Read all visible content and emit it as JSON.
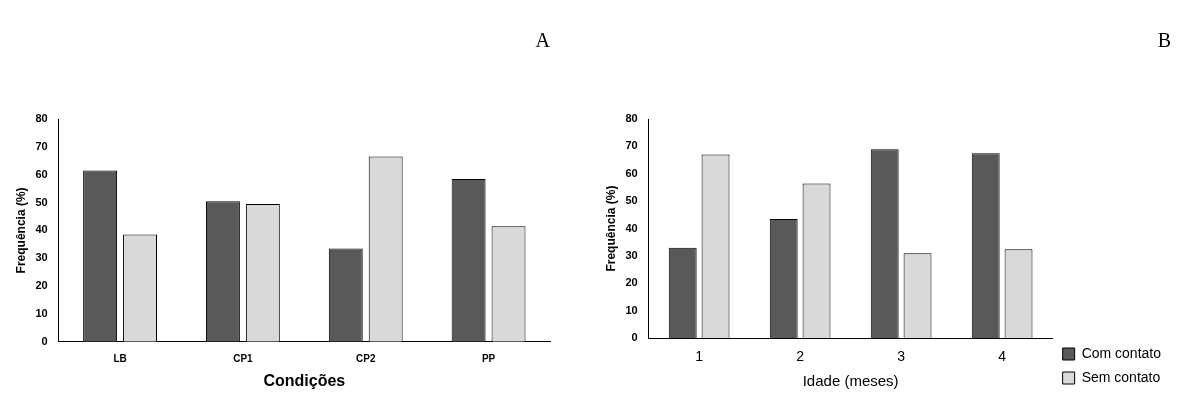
{
  "chart_data": [
    {
      "type": "bar",
      "title": "A",
      "x_label": "Condições",
      "y_label": "Frequência (%)",
      "categories": [
        "LB",
        "CP1",
        "CP2",
        "PP"
      ],
      "series": [
        {
          "color": "#595959",
          "values": [
            61.5,
            50.5,
            33.5,
            58.5
          ]
        },
        {
          "color": "#d9d9d9",
          "values": [
            38.5,
            49.5,
            66.5,
            41.5
          ]
        }
      ],
      "ylim": [
        0,
        80
      ],
      "yticks": [
        0,
        10,
        20,
        30,
        40,
        50,
        60,
        70,
        80
      ],
      "grid": false
    },
    {
      "type": "bar",
      "title": "B",
      "x_label": "Idade (meses)",
      "y_label": "Frequência (%)",
      "categories": [
        "1",
        "2",
        "3",
        "4"
      ],
      "series": [
        {
          "name": "Com contato",
          "color": "#595959",
          "values": [
            33,
            43.5,
            69,
            67.5
          ]
        },
        {
          "name": "Sem contato",
          "color": "#d9d9d9",
          "values": [
            67,
            56.5,
            31,
            32.5
          ]
        }
      ],
      "ylim": [
        0,
        80
      ],
      "yticks": [
        0,
        10,
        20,
        30,
        40,
        50,
        60,
        70,
        80
      ],
      "grid": false,
      "legend": "right"
    }
  ]
}
